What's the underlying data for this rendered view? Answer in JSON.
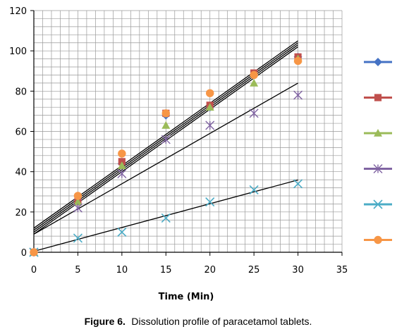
{
  "caption": {
    "label": "Figure 6.",
    "text": "Dissolution profile of paracetamol tablets."
  },
  "chart_data": {
    "type": "scatter",
    "xlabel": "Time (Min)",
    "ylabel": "",
    "xlim": [
      0,
      35
    ],
    "ylim": [
      0,
      120
    ],
    "xticks": [
      0,
      5,
      10,
      15,
      20,
      25,
      30,
      35
    ],
    "yticks": [
      0,
      20,
      40,
      60,
      80,
      100,
      120
    ],
    "grid": true,
    "legend": "right",
    "x": [
      0,
      5,
      10,
      15,
      20,
      25,
      30
    ],
    "series": [
      {
        "marker": "diamond",
        "color": "#4472C4",
        "values": [
          0,
          26,
          44,
          68,
          72,
          88,
          97
        ]
      },
      {
        "marker": "square",
        "color": "#C0504D",
        "values": [
          0,
          25,
          45,
          69,
          73,
          89,
          97
        ]
      },
      {
        "marker": "triangle",
        "color": "#9BBB59",
        "values": [
          0,
          25,
          43,
          63,
          72,
          84,
          96
        ]
      },
      {
        "marker": "star",
        "color": "#8064A2",
        "values": [
          0,
          22,
          39,
          56,
          63,
          69,
          78
        ]
      },
      {
        "marker": "x",
        "color": "#4BACC6",
        "values": [
          0,
          7,
          10,
          17,
          25,
          31,
          34
        ]
      },
      {
        "marker": "circle",
        "color": "#F79646",
        "values": [
          0,
          28,
          49,
          69,
          79,
          88,
          95
        ]
      }
    ],
    "trendlines": [
      {
        "intercept": 12,
        "slope": 3.1
      },
      {
        "intercept": 11,
        "slope": 3.1
      },
      {
        "intercept": 10,
        "slope": 3.1
      },
      {
        "intercept": 9,
        "slope": 3.1
      },
      {
        "intercept": 9,
        "slope": 2.5
      },
      {
        "intercept": 0.5,
        "slope": 1.18
      }
    ]
  }
}
